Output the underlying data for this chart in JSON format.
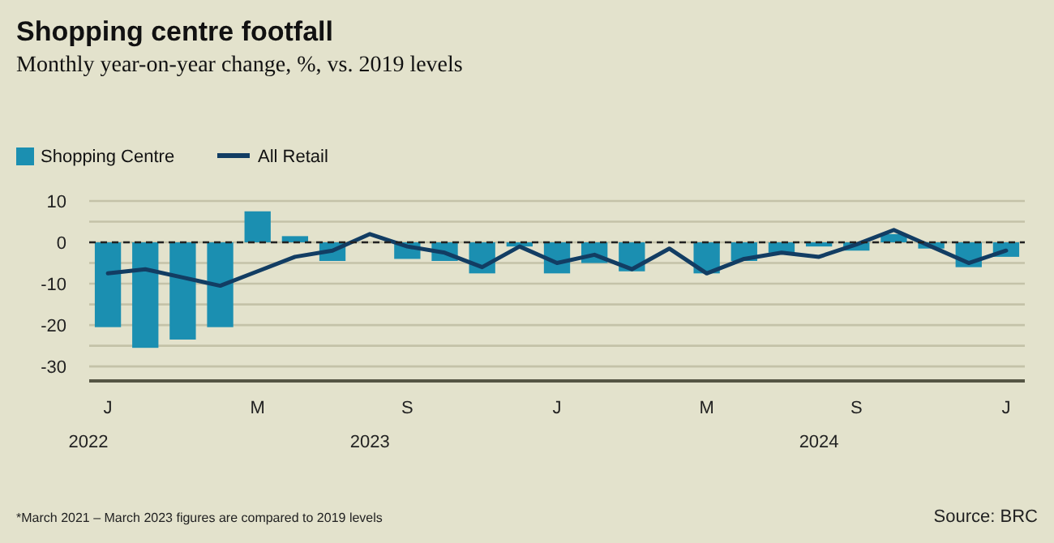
{
  "chart_data": {
    "type": "bar",
    "title": "Shopping centre footfall",
    "subtitle": "Monthly year-on-year change, %, vs. 2019 levels",
    "categories": [
      "J",
      null,
      null,
      null,
      "M",
      null,
      null,
      null,
      "S",
      null,
      null,
      null,
      "J",
      null,
      null,
      null,
      "M",
      null,
      null,
      null,
      "S",
      null,
      null,
      null,
      "J"
    ],
    "series": [
      {
        "name": "Shopping Centre",
        "color": "#1b8fb1",
        "values": [
          -20.5,
          -25.5,
          -23.5,
          -20.5,
          7.5,
          1.5,
          -4.5,
          0,
          -4,
          -4.5,
          -7.5,
          -1,
          -7.5,
          -5,
          -7,
          0,
          -7.5,
          -4.5,
          -2.5,
          -1,
          -2,
          2,
          -1.5,
          -6,
          -3.5
        ]
      },
      {
        "name": "All Retail",
        "type": "line",
        "color": "#123d63",
        "values": [
          -7.5,
          -6.5,
          -8.5,
          -10.5,
          -7,
          -3.5,
          -2,
          2,
          -1,
          -2.5,
          -6,
          -1,
          -5,
          -3,
          -6.5,
          -1.5,
          -7.5,
          -4,
          -2.5,
          -3.5,
          -0.5,
          3,
          -1,
          -5,
          -2
        ]
      }
    ],
    "ylim": [
      -33.5,
      10
    ],
    "yticks": [
      {
        "value": -30,
        "label": "-30"
      },
      {
        "value": -25,
        "label": null
      },
      {
        "value": -20,
        "label": "-20"
      },
      {
        "value": -15,
        "label": null
      },
      {
        "value": -10,
        "label": "-10"
      },
      {
        "value": -5,
        "label": null
      },
      0,
      {
        "value": 5,
        "label": null
      },
      10
    ],
    "grid": "y",
    "legend": "top left",
    "ref_lines": [
      {
        "axis": "y",
        "value": 0,
        "line_style": "dashed",
        "color": "#222222"
      }
    ],
    "annotations": [
      "2022",
      "2023",
      "2024",
      "*March 2021 – March 2023 figures are compared to 2019 levels",
      "Source: BRC"
    ]
  }
}
